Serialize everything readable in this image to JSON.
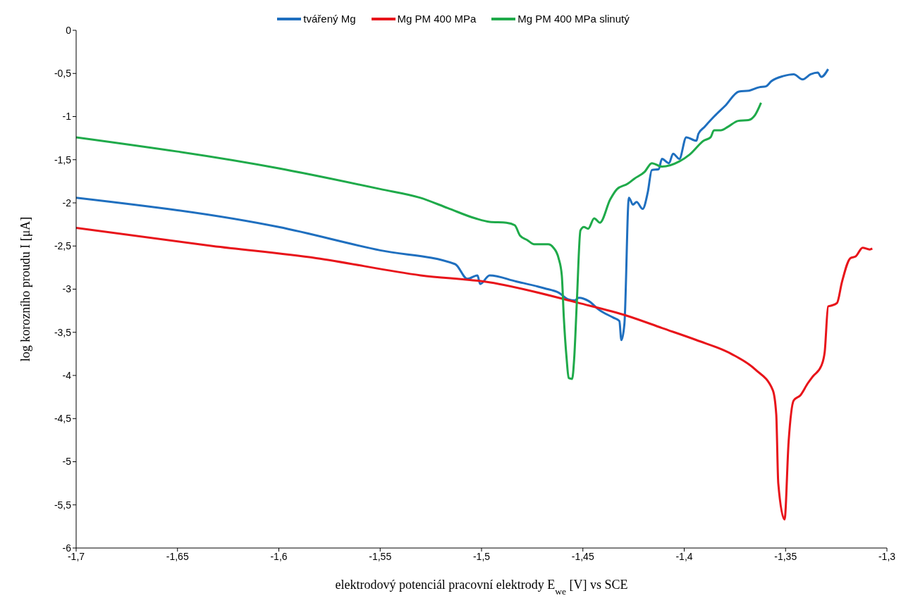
{
  "chart_data": {
    "type": "line",
    "xlabel": "elektrodový potenciál pracovní elektrody E$_{we}$ [V] vs SCE",
    "ylabel": "log korozního proudu I [μA]",
    "xlim": [
      -1.7,
      -1.3
    ],
    "ylim": [
      -6,
      0
    ],
    "xticks": [
      {
        "value": -1.7,
        "label": "-1,7"
      },
      {
        "value": -1.65,
        "label": "-1,65"
      },
      {
        "value": -1.6,
        "label": "-1,6"
      },
      {
        "value": -1.55,
        "label": "-1,55"
      },
      {
        "value": -1.5,
        "label": "-1,5"
      },
      {
        "value": -1.45,
        "label": "-1,45"
      },
      {
        "value": -1.4,
        "label": "-1,4"
      },
      {
        "value": -1.35,
        "label": "-1,35"
      },
      {
        "value": -1.3,
        "label": "-1,3"
      }
    ],
    "yticks": [
      {
        "value": -6,
        "label": "-6"
      },
      {
        "value": -5.5,
        "label": "-5,5"
      },
      {
        "value": -5,
        "label": "-5"
      },
      {
        "value": -4.5,
        "label": "-4,5"
      },
      {
        "value": -4,
        "label": "-4"
      },
      {
        "value": -3.5,
        "label": "-3,5"
      },
      {
        "value": -3,
        "label": "-3"
      },
      {
        "value": -2.5,
        "label": "-2,5"
      },
      {
        "value": -2,
        "label": "-2"
      },
      {
        "value": -1.5,
        "label": "-1,5"
      },
      {
        "value": -1,
        "label": "-1"
      },
      {
        "value": -0.5,
        "label": "-0,5"
      },
      {
        "value": 0,
        "label": "0"
      }
    ],
    "grid": false,
    "legend": "top",
    "marker": "none",
    "line_style": "solid",
    "series": [
      {
        "name": "tvářený Mg",
        "color": "#1f6fbf",
        "x": [
          -1.7,
          -1.6,
          -1.55,
          -1.513,
          -1.507,
          -1.502,
          -1.5007,
          -1.496,
          -1.483,
          -1.469,
          -1.462,
          -1.457,
          -1.454,
          -1.452,
          -1.447,
          -1.442,
          -1.435,
          -1.432,
          -1.431,
          -1.4295,
          -1.4273,
          -1.4253,
          -1.4235,
          -1.4205,
          -1.418,
          -1.416,
          -1.4126,
          -1.411,
          -1.4075,
          -1.4055,
          -1.4024,
          -1.399,
          -1.394,
          -1.393,
          -1.39,
          -1.3853,
          -1.38,
          -1.373,
          -1.368,
          -1.363,
          -1.3597,
          -1.357,
          -1.351,
          -1.346,
          -1.3416,
          -1.3376,
          -1.3341,
          -1.3324,
          -1.329
        ],
        "values": [
          -1.94,
          -2.28,
          -2.55,
          -2.71,
          -2.88,
          -2.84,
          -2.94,
          -2.84,
          -2.91,
          -2.99,
          -3.04,
          -3.12,
          -3.13,
          -3.1,
          -3.14,
          -3.24,
          -3.33,
          -3.37,
          -3.59,
          -3.4,
          -1.94,
          -2.02,
          -1.99,
          -2.07,
          -1.88,
          -1.62,
          -1.61,
          -1.49,
          -1.54,
          -1.43,
          -1.49,
          -1.24,
          -1.28,
          -1.2,
          -1.12,
          -1,
          -0.88,
          -0.71,
          -0.7,
          -0.66,
          -0.65,
          -0.59,
          -0.53,
          -0.51,
          -0.57,
          -0.51,
          -0.49,
          -0.54,
          -0.45
        ]
      },
      {
        "name": "Mg PM 400 MPa",
        "color": "#e8141a",
        "x": [
          -1.7,
          -1.6328,
          -1.5816,
          -1.53,
          -1.4962,
          -1.452,
          -1.428,
          -1.411,
          -1.394,
          -1.3768,
          -1.365,
          -1.3563,
          -1.3546,
          -1.3536,
          -1.3505,
          -1.3485,
          -1.346,
          -1.3427,
          -1.339,
          -1.3365,
          -1.3324,
          -1.3307,
          -1.329,
          -1.3273,
          -1.3246,
          -1.3222,
          -1.318,
          -1.3154,
          -1.312,
          -1.3085,
          -1.3072
        ],
        "values": [
          -2.29,
          -2.5,
          -2.64,
          -2.84,
          -2.92,
          -3.16,
          -3.31,
          -3.45,
          -3.59,
          -3.75,
          -3.93,
          -4.17,
          -4.45,
          -5.25,
          -5.67,
          -4.77,
          -4.29,
          -4.23,
          -4.09,
          -4.01,
          -3.89,
          -3.73,
          -3.2,
          -3.19,
          -3.16,
          -2.92,
          -2.64,
          -2.62,
          -2.52,
          -2.54,
          -2.53
        ]
      },
      {
        "name": "Mg PM 400 MPa slinutý",
        "color": "#1faa4a",
        "x": [
          -1.7,
          -1.6,
          -1.55,
          -1.5304,
          -1.5167,
          -1.503,
          -1.496,
          -1.4877,
          -1.4836,
          -1.481,
          -1.4775,
          -1.474,
          -1.4672,
          -1.4645,
          -1.462,
          -1.4604,
          -1.4594,
          -1.458,
          -1.457,
          -1.4553,
          -1.4543,
          -1.453,
          -1.4512,
          -1.4495,
          -1.4474,
          -1.4444,
          -1.4416,
          -1.4365,
          -1.4331,
          -1.428,
          -1.4246,
          -1.4195,
          -1.416,
          -1.4109,
          -1.4024,
          -1.3973,
          -1.3904,
          -1.387,
          -1.3853,
          -1.382,
          -1.3785,
          -1.3734,
          -1.3683,
          -1.365,
          -1.3621
        ],
        "values": [
          -1.24,
          -1.6,
          -1.84,
          -1.94,
          -2.06,
          -2.18,
          -2.22,
          -2.23,
          -2.26,
          -2.38,
          -2.43,
          -2.48,
          -2.48,
          -2.52,
          -2.64,
          -2.84,
          -3.33,
          -3.81,
          -4.03,
          -4.04,
          -3.81,
          -3.16,
          -2.32,
          -2.28,
          -2.3,
          -2.18,
          -2.23,
          -1.96,
          -1.84,
          -1.78,
          -1.72,
          -1.64,
          -1.54,
          -1.58,
          -1.52,
          -1.44,
          -1.28,
          -1.24,
          -1.16,
          -1.16,
          -1.12,
          -1.05,
          -1.04,
          -0.98,
          -0.84
        ]
      }
    ]
  }
}
